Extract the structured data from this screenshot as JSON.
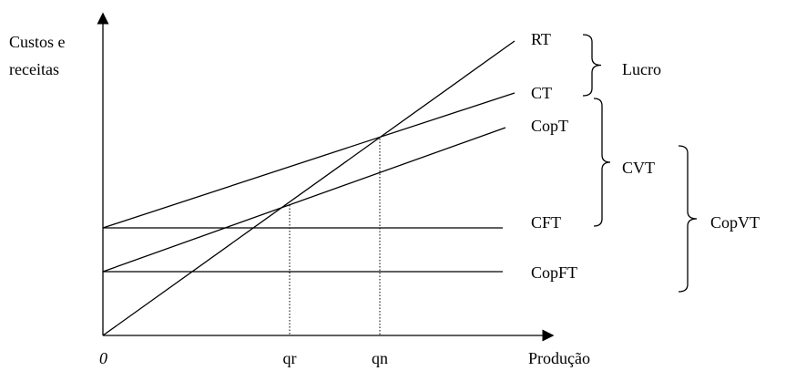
{
  "axes": {
    "y_label_line1": "Custos e",
    "y_label_line2": "receitas",
    "origin": "0",
    "x_label": "Produção",
    "x_marks": [
      "qr",
      "qn"
    ]
  },
  "curves": [
    "RT",
    "CT",
    "CopT",
    "CFT",
    "CopFT"
  ],
  "groups": [
    "Lucro",
    "CVT",
    "CopVT"
  ]
}
